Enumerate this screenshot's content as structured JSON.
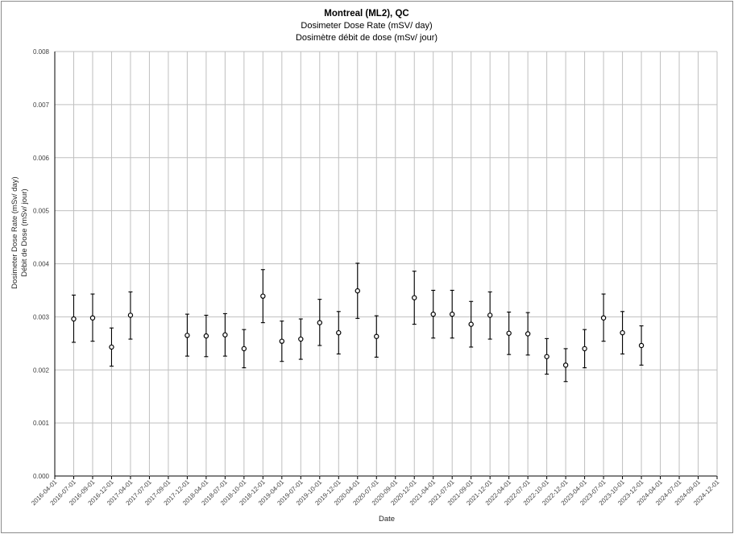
{
  "chart_data": {
    "type": "scatter",
    "title": "Montreal (ML2), QC",
    "subtitle_en": "Dosimeter Dose Rate (mSV/ day)",
    "subtitle_fr": "Dosimètre débit de dose (mSv/ jour)",
    "xlabel": "Date",
    "ylabel_en": "Dosimeter Dose Rate (mSv/ day)",
    "ylabel_fr": "Débit de Dose (mSv/ jour)",
    "ylim": [
      0,
      0.008
    ],
    "y_ticks": [
      "0.000",
      "0.001",
      "0.002",
      "0.003",
      "0.004",
      "0.005",
      "0.006",
      "0.007",
      "0.008"
    ],
    "x_ticks": [
      "2016-04-01",
      "2016-07-01",
      "2016-09-01",
      "2016-12-01",
      "2017-04-01",
      "2017-07-01",
      "2017-09-01",
      "2017-12-01",
      "2018-04-01",
      "2018-07-01",
      "2018-10-01",
      "2018-12-01",
      "2019-04-01",
      "2019-07-01",
      "2019-10-01",
      "2019-12-01",
      "2020-04-01",
      "2020-07-01",
      "2020-09-01",
      "2020-12-01",
      "2021-04-01",
      "2021-07-01",
      "2021-09-01",
      "2021-12-01",
      "2022-04-01",
      "2022-07-01",
      "2022-10-01",
      "2022-12-01",
      "2023-04-01",
      "2023-07-01",
      "2023-10-01",
      "2023-12-01",
      "2024-04-01",
      "2024-07-01",
      "2024-09-01",
      "2024-12-01"
    ],
    "grid": true,
    "marker": "open-circle",
    "errorbars": true,
    "colors": {
      "marker": "#000000",
      "grid": "#bfbfbf",
      "axis": "#000000",
      "background": "#ffffff"
    },
    "points": [
      {
        "x": "2016-07-01",
        "y": 0.00296,
        "low": 0.00252,
        "high": 0.00341
      },
      {
        "x": "2016-09-01",
        "y": 0.00298,
        "low": 0.00254,
        "high": 0.00343
      },
      {
        "x": "2016-12-01",
        "y": 0.00243,
        "low": 0.00207,
        "high": 0.00279
      },
      {
        "x": "2017-04-01",
        "y": 0.00303,
        "low": 0.00258,
        "high": 0.00347
      },
      {
        "x": "2017-12-01",
        "y": 0.00265,
        "low": 0.00226,
        "high": 0.00305
      },
      {
        "x": "2018-04-01",
        "y": 0.00264,
        "low": 0.00225,
        "high": 0.00303
      },
      {
        "x": "2018-07-01",
        "y": 0.00266,
        "low": 0.00226,
        "high": 0.00306
      },
      {
        "x": "2018-10-01",
        "y": 0.0024,
        "low": 0.00204,
        "high": 0.00276
      },
      {
        "x": "2018-12-01",
        "y": 0.00339,
        "low": 0.00289,
        "high": 0.00389
      },
      {
        "x": "2019-04-01",
        "y": 0.00254,
        "low": 0.00216,
        "high": 0.00292
      },
      {
        "x": "2019-07-01",
        "y": 0.00258,
        "low": 0.0022,
        "high": 0.00296
      },
      {
        "x": "2019-10-01",
        "y": 0.00289,
        "low": 0.00246,
        "high": 0.00333
      },
      {
        "x": "2019-12-01",
        "y": 0.0027,
        "low": 0.0023,
        "high": 0.0031
      },
      {
        "x": "2020-04-01",
        "y": 0.00349,
        "low": 0.00297,
        "high": 0.00401
      },
      {
        "x": "2020-07-01",
        "y": 0.00263,
        "low": 0.00224,
        "high": 0.00302
      },
      {
        "x": "2020-12-01",
        "y": 0.00336,
        "low": 0.00286,
        "high": 0.00386
      },
      {
        "x": "2021-04-01",
        "y": 0.00305,
        "low": 0.0026,
        "high": 0.0035
      },
      {
        "x": "2021-07-01",
        "y": 0.00305,
        "low": 0.0026,
        "high": 0.0035
      },
      {
        "x": "2021-09-01",
        "y": 0.00286,
        "low": 0.00243,
        "high": 0.00329
      },
      {
        "x": "2021-12-01",
        "y": 0.00303,
        "low": 0.00258,
        "high": 0.00347
      },
      {
        "x": "2022-04-01",
        "y": 0.00269,
        "low": 0.00229,
        "high": 0.00309
      },
      {
        "x": "2022-07-01",
        "y": 0.00268,
        "low": 0.00228,
        "high": 0.00308
      },
      {
        "x": "2022-10-01",
        "y": 0.00225,
        "low": 0.00192,
        "high": 0.00259
      },
      {
        "x": "2022-12-01",
        "y": 0.00209,
        "low": 0.00178,
        "high": 0.0024
      },
      {
        "x": "2023-04-01",
        "y": 0.0024,
        "low": 0.00204,
        "high": 0.00276
      },
      {
        "x": "2023-07-01",
        "y": 0.00298,
        "low": 0.00254,
        "high": 0.00343
      },
      {
        "x": "2023-10-01",
        "y": 0.0027,
        "low": 0.0023,
        "high": 0.0031
      },
      {
        "x": "2023-12-01",
        "y": 0.00246,
        "low": 0.00209,
        "high": 0.00283
      }
    ]
  }
}
